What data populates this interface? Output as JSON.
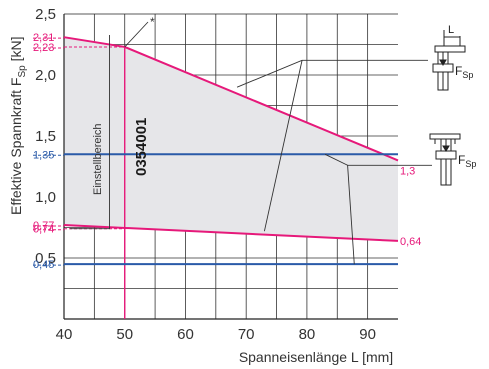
{
  "chart_data": {
    "type": "line",
    "xlabel": "Spanneisenlänge L [mm]",
    "ylabel_main": "Effektive Spannkraft F",
    "ylabel_sub": "Sp",
    "ylabel_unit": " [kN]",
    "x_ticks": [
      "40",
      "50",
      "60",
      "70",
      "80",
      "90"
    ],
    "y_ticks": [
      "0,5",
      "1,0",
      "1,5",
      "2,0",
      "2,5"
    ],
    "xlim": [
      40,
      95
    ],
    "ylim": [
      0,
      2.5
    ],
    "grid": true,
    "series": [
      {
        "role": "upper",
        "color": "#e6197a",
        "x": [
          40,
          50,
          95
        ],
        "y": [
          2.31,
          2.23,
          1.3
        ]
      },
      {
        "role": "lower",
        "color": "#e6197a",
        "x": [
          40,
          95
        ],
        "y": [
          0.77,
          0.64
        ]
      },
      {
        "role": "blue-high",
        "color": "#2a5aa8",
        "x": [
          40,
          95
        ],
        "y": [
          1.35,
          1.35
        ]
      },
      {
        "role": "blue-low",
        "color": "#2a5aa8",
        "x": [
          40,
          95
        ],
        "y": [
          0.45,
          0.45
        ]
      }
    ],
    "vline": {
      "x": 50,
      "color": "#e6197a"
    },
    "left_values": [
      {
        "text": "2,31",
        "y": 2.31,
        "color": "#e6197a"
      },
      {
        "text": "2,23",
        "y": 2.23,
        "color": "#e6197a"
      },
      {
        "text": "1,35",
        "y": 1.35,
        "color": "#2a5aa8"
      },
      {
        "text": "0,77",
        "y": 0.77,
        "color": "#e6197a"
      },
      {
        "text": "0,74",
        "y": 0.74,
        "color": "#e6197a"
      },
      {
        "text": "0,45",
        "y": 0.45,
        "color": "#2a5aa8"
      }
    ],
    "right_values": [
      {
        "text": "1,3",
        "y": 1.3,
        "color": "#e6197a"
      },
      {
        "text": "0,64",
        "y": 0.64,
        "color": "#e6197a"
      }
    ],
    "annotations": {
      "range_label": "Einstellbereich",
      "article": "0354001",
      "asterisk": "*",
      "icon_label_L": "L",
      "icon_label_F": "F",
      "icon_label_sub": "Sp"
    }
  }
}
